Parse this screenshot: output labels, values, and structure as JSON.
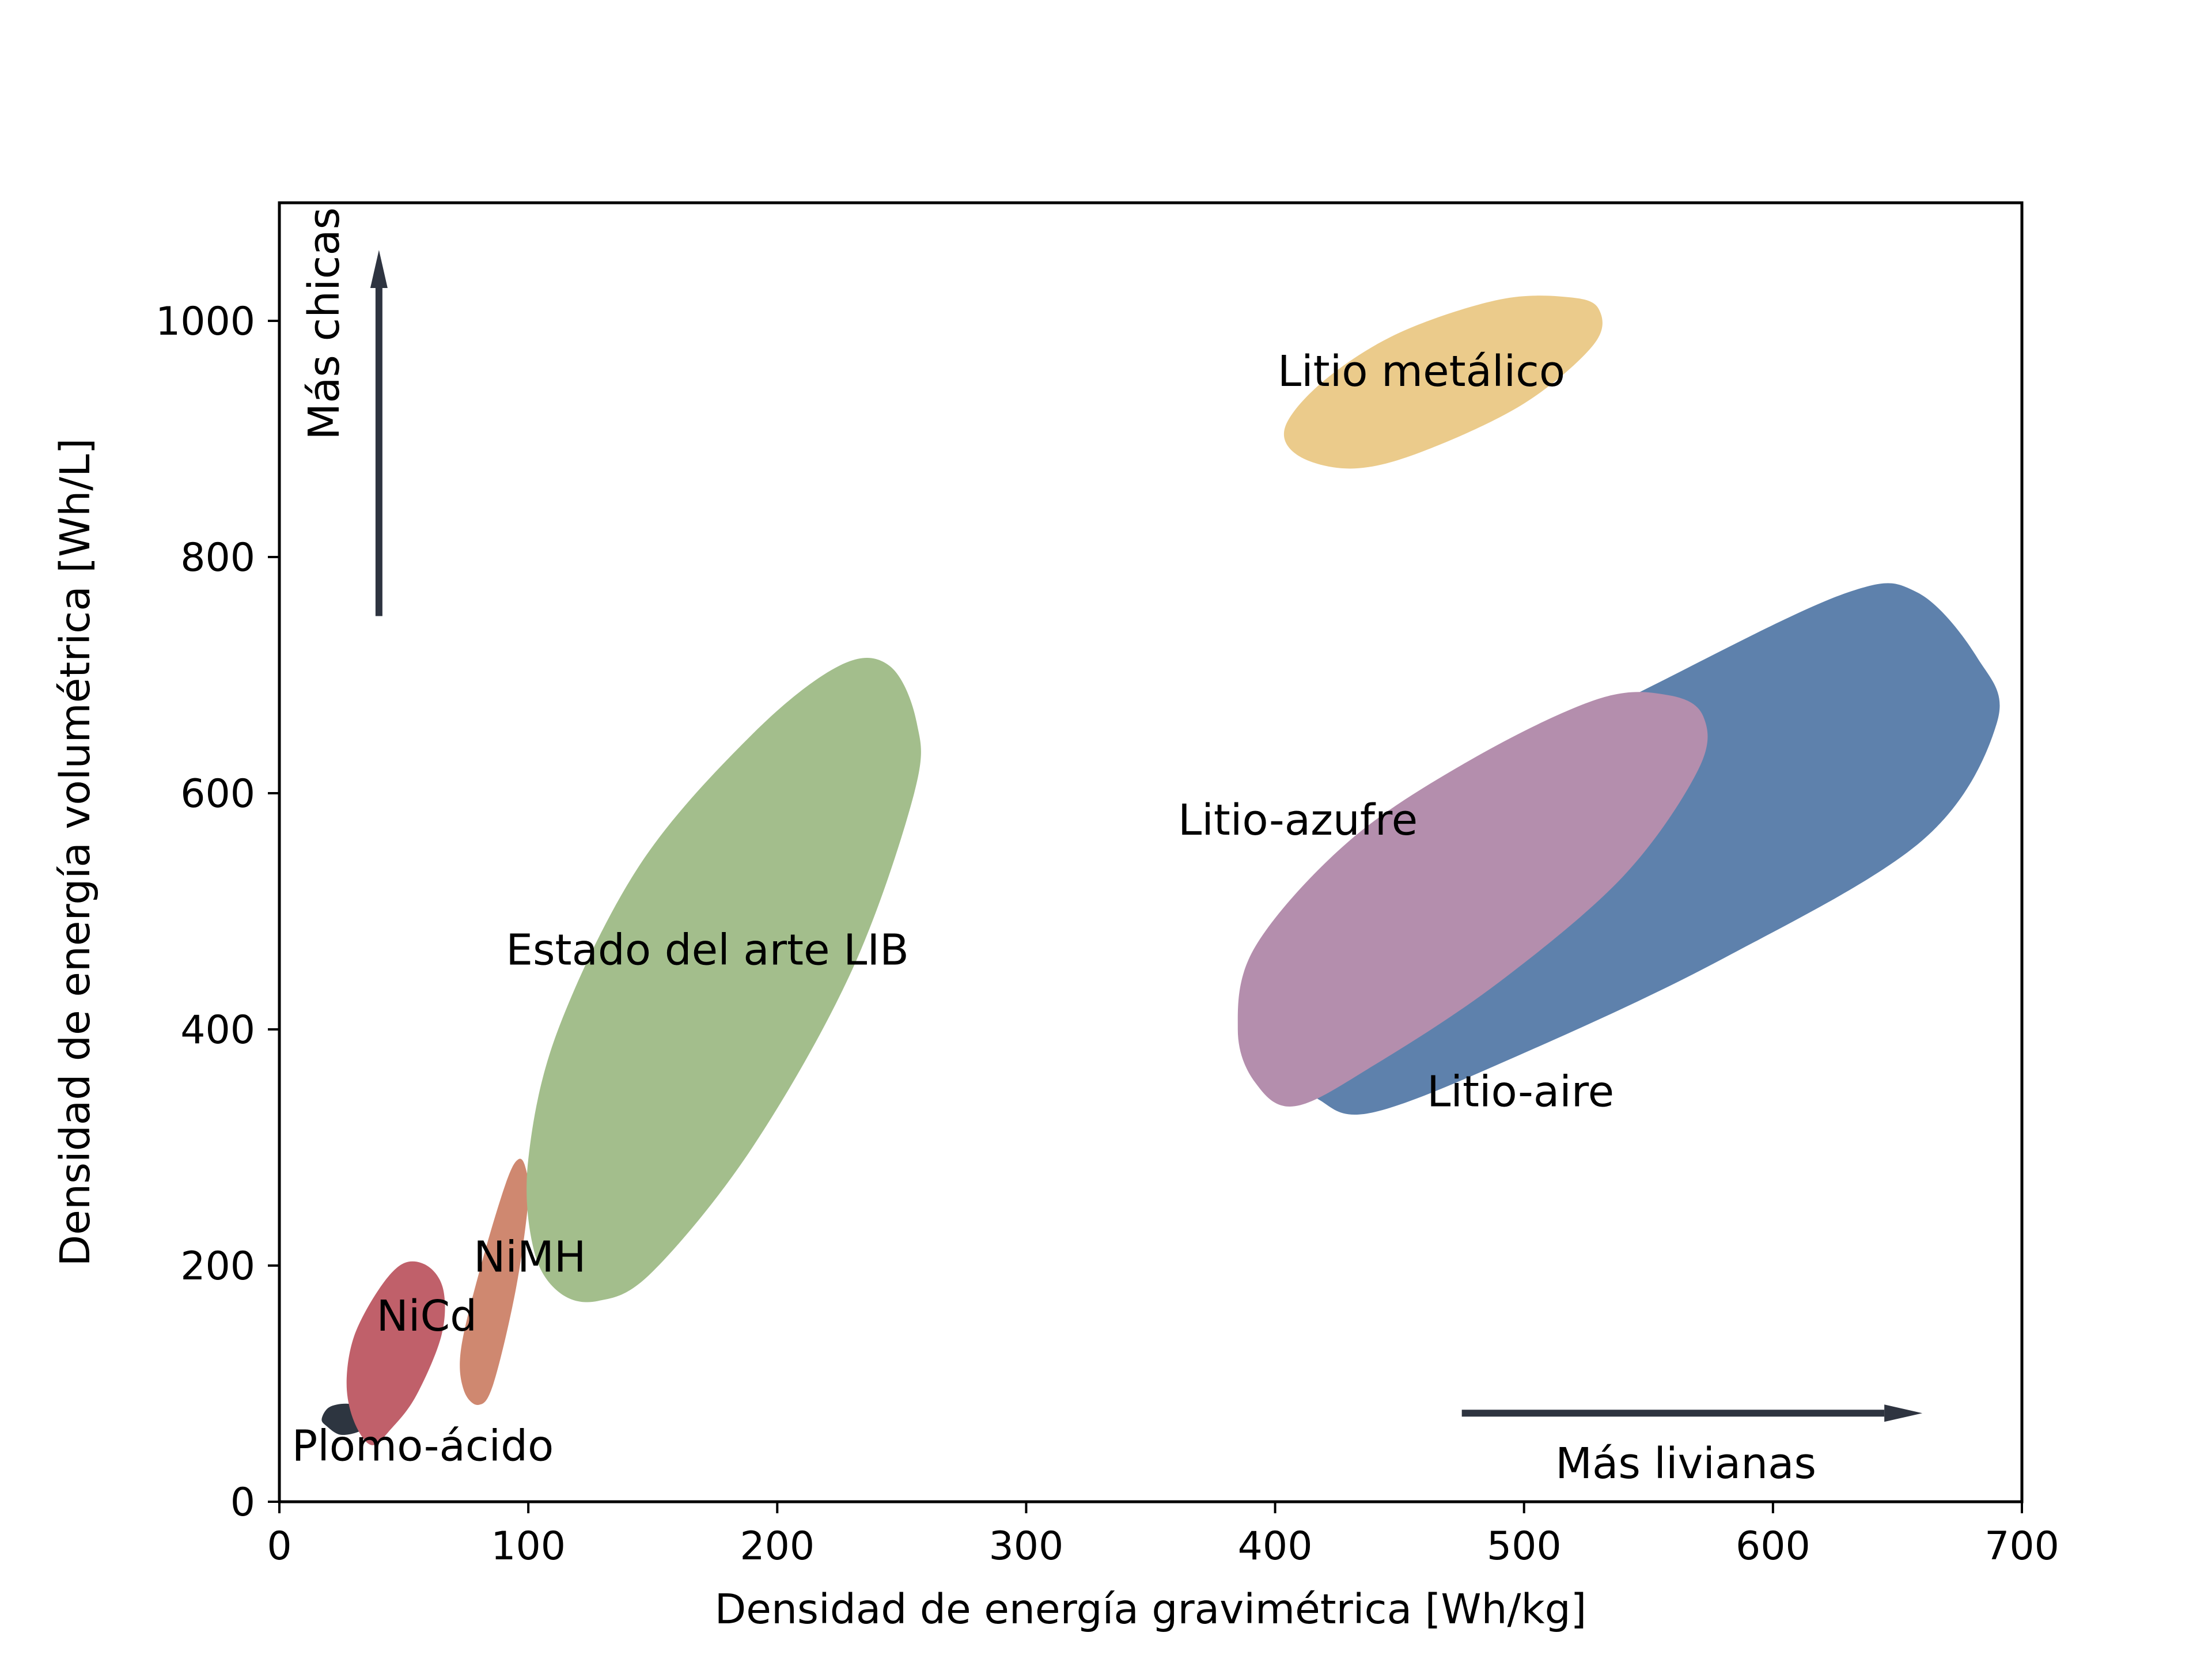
{
  "chart_data": {
    "type": "scatter",
    "title": "",
    "xlabel": "Densidad de energía gravimétrica [Wh/kg]",
    "ylabel": "Densidad de energía volumétrica [Wh/L]",
    "xlim": [
      0,
      700
    ],
    "ylim": [
      0,
      1100
    ],
    "xticks": [
      0,
      100,
      200,
      300,
      400,
      500,
      600,
      700
    ],
    "yticks": [
      0,
      200,
      400,
      600,
      800,
      1000
    ],
    "xtick_labels": [
      "0",
      "100",
      "200",
      "300",
      "400",
      "500",
      "600",
      "700"
    ],
    "ytick_labels": [
      "0",
      "200",
      "400",
      "600",
      "800",
      "1000"
    ],
    "grid": false,
    "legend": "none",
    "regions": [
      {
        "label": "Plomo-ácido",
        "color": "#2d3540",
        "outline": [
          [
            17,
            70
          ],
          [
            19,
            64
          ],
          [
            24,
            57
          ],
          [
            30,
            58
          ],
          [
            35,
            63
          ],
          [
            37,
            71
          ],
          [
            34,
            79
          ],
          [
            27,
            83
          ],
          [
            20,
            80
          ]
        ]
      },
      {
        "label": "NiCd",
        "color": "#c0606a",
        "outline": [
          [
            37,
            48
          ],
          [
            45,
            62
          ],
          [
            55,
            90
          ],
          [
            65,
            140
          ],
          [
            66,
            178
          ],
          [
            60,
            199
          ],
          [
            50,
            202
          ],
          [
            40,
            180
          ],
          [
            30,
            140
          ],
          [
            27,
            100
          ],
          [
            30,
            68
          ]
        ]
      },
      {
        "label": "NiMH",
        "color": "#cf8870",
        "outline": [
          [
            80,
            82
          ],
          [
            86,
            100
          ],
          [
            95,
            180
          ],
          [
            100,
            255
          ],
          [
            99,
            282
          ],
          [
            96,
            290
          ],
          [
            91,
            270
          ],
          [
            81,
            200
          ],
          [
            73,
            130
          ],
          [
            74,
            95
          ]
        ]
      },
      {
        "label": "Estado del arte LIB",
        "color": "#a3be8c",
        "outline": [
          [
            128,
            170
          ],
          [
            150,
            195
          ],
          [
            190,
            300
          ],
          [
            230,
            450
          ],
          [
            255,
            600
          ],
          [
            256,
            660
          ],
          [
            245,
            708
          ],
          [
            225,
            708
          ],
          [
            190,
            650
          ],
          [
            145,
            540
          ],
          [
            112,
            400
          ],
          [
            100,
            290
          ],
          [
            102,
            215
          ],
          [
            112,
            178
          ]
        ]
      },
      {
        "label": "Litio-aire",
        "color": "#5e81ac",
        "outline": [
          [
            440,
            330
          ],
          [
            500,
            380
          ],
          [
            580,
            460
          ],
          [
            660,
            560
          ],
          [
            690,
            660
          ],
          [
            682,
            715
          ],
          [
            658,
            770
          ],
          [
            630,
            770
          ],
          [
            560,
            700
          ],
          [
            490,
            620
          ],
          [
            440,
            530
          ],
          [
            412,
            430
          ],
          [
            408,
            370
          ],
          [
            418,
            340
          ]
        ]
      },
      {
        "label": "Litio-azufre",
        "color": "#b48ead",
        "outline": [
          [
            408,
            335
          ],
          [
            440,
            370
          ],
          [
            490,
            440
          ],
          [
            540,
            530
          ],
          [
            570,
            620
          ],
          [
            572,
            665
          ],
          [
            558,
            683
          ],
          [
            530,
            680
          ],
          [
            480,
            630
          ],
          [
            430,
            560
          ],
          [
            392,
            470
          ],
          [
            385,
            400
          ],
          [
            392,
            355
          ]
        ]
      },
      {
        "label": "Litio metálico",
        "color": "#ebcb8b",
        "outline": [
          [
            432,
            875
          ],
          [
            460,
            890
          ],
          [
            500,
            930
          ],
          [
            528,
            980
          ],
          [
            530,
            1010
          ],
          [
            518,
            1020
          ],
          [
            490,
            1018
          ],
          [
            450,
            990
          ],
          [
            420,
            950
          ],
          [
            404,
            910
          ],
          [
            410,
            885
          ]
        ]
      }
    ],
    "region_labels": [
      {
        "text": "Plomo-ácido",
        "x": 5,
        "y": 35
      },
      {
        "text": "NiCd",
        "x": 39,
        "y": 145
      },
      {
        "text": "NiMH",
        "x": 78,
        "y": 195
      },
      {
        "text": "Estado del arte LIB",
        "x": 91,
        "y": 455
      },
      {
        "text": "Litio-azufre",
        "x": 361,
        "y": 565
      },
      {
        "text": "Litio-aire",
        "x": 461,
        "y": 335
      },
      {
        "text": "Litio metálico",
        "x": 401,
        "y": 945
      }
    ],
    "annotations": [
      {
        "text": "Más chicas",
        "from": [
          40,
          750
        ],
        "to": [
          40,
          1060
        ],
        "color": "#2e3440"
      },
      {
        "text": "Más livianas",
        "from": [
          475,
          75
        ],
        "to": [
          660,
          75
        ],
        "color": "#2e3440"
      }
    ]
  }
}
